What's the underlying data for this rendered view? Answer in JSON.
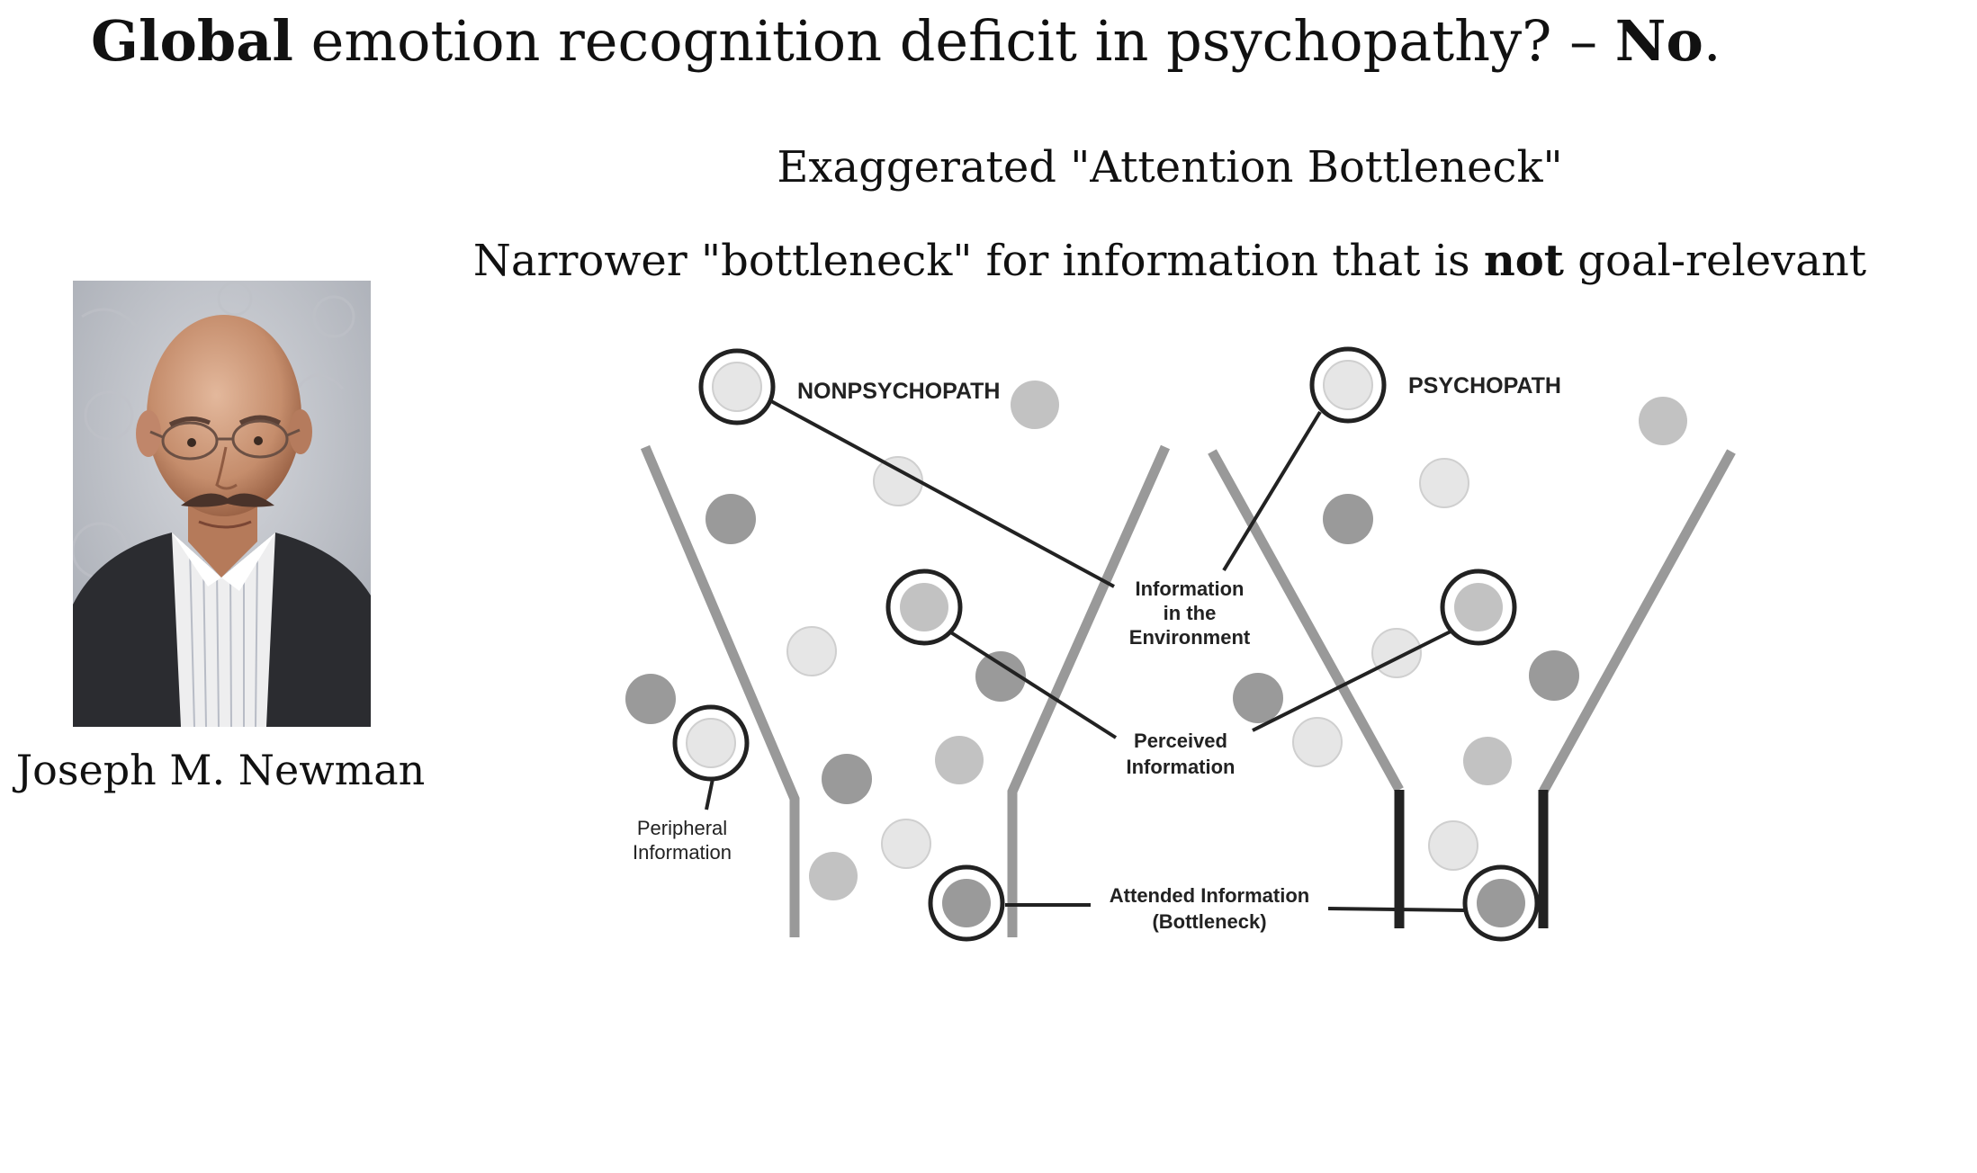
{
  "title": {
    "bold_1": "Global",
    "text": " emotion recognition deficit in psychopathy? – ",
    "bold_2": "No",
    "end": "."
  },
  "subtitle_1": "Exaggerated \"Attention Bottleneck\"",
  "subtitle_2": {
    "pre": "Narrower \"bottleneck\" for information that is ",
    "bold": "not",
    "post": " goal-relevant"
  },
  "photo": {
    "caption": "Joseph M. Newman"
  },
  "diagram": {
    "label_left": "NONPSYCHOPATH",
    "label_right": "PSYCHOPATH",
    "info_env_1": "Information",
    "info_env_2": "in the",
    "info_env_3": "Environment",
    "perceived_1": "Perceived",
    "perceived_2": "Information",
    "peripheral_1": "Peripheral",
    "peripheral_2": "Information",
    "attended_1": "Attended Information",
    "attended_2": "(Bottleneck)"
  },
  "colors": {
    "funnel": "#999999",
    "bottleneck_psychopath": "#222222",
    "dot_light": "#e6e6e6",
    "dot_mid": "#c2c2c2",
    "dot_dark": "#9a9a9a"
  }
}
